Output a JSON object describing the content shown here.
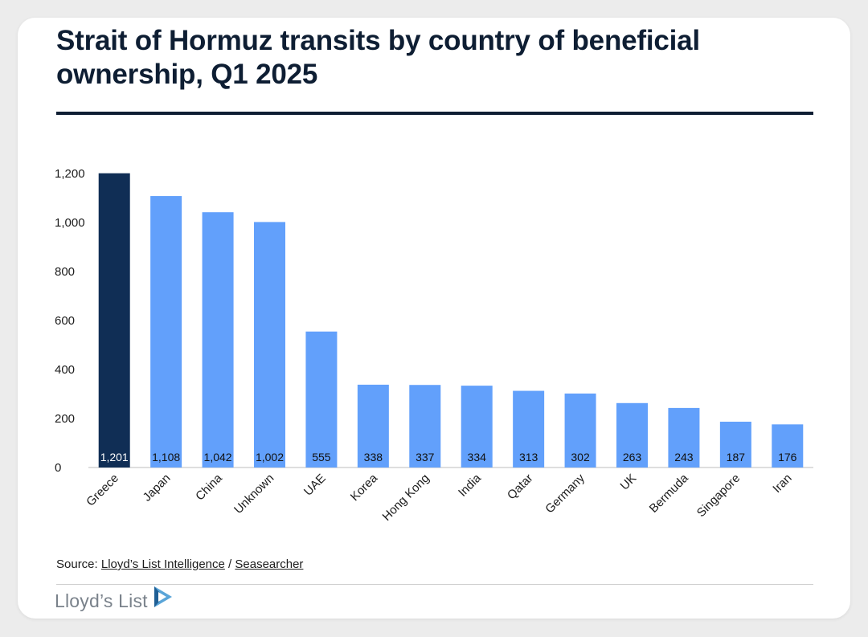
{
  "title": "Strait of Hormuz transits by country of beneficial ownership, Q1 2025",
  "source": {
    "prefix": "Source: ",
    "link1": "Lloyd’s List Intelligence",
    "separator": " / ",
    "link2": "Seasearcher"
  },
  "logo_text": "Lloyd’s List",
  "colors": {
    "highlight": "#102e55",
    "bar": "#62a0fb",
    "title": "#0e1e33"
  },
  "chart_data": {
    "type": "bar",
    "title": "Strait of Hormuz transits by country of beneficial ownership, Q1 2025",
    "xlabel": "",
    "ylabel": "",
    "ylim": [
      0,
      1200
    ],
    "yticks": [
      0,
      200,
      400,
      600,
      800,
      1000,
      1200
    ],
    "ytick_labels": [
      "0",
      "200",
      "400",
      "600",
      "800",
      "1,000",
      "1,200"
    ],
    "grid": false,
    "categories": [
      "Greece",
      "Japan",
      "China",
      "Unknown",
      "UAE",
      "Korea",
      "Hong Kong",
      "India",
      "Qatar",
      "Germany",
      "UK",
      "Bermuda",
      "Singapore",
      "Iran"
    ],
    "values": [
      1201,
      1108,
      1042,
      1002,
      555,
      338,
      337,
      334,
      313,
      302,
      263,
      243,
      187,
      176
    ],
    "data_labels": [
      "1,201",
      "1,108",
      "1,042",
      "1,002",
      "555",
      "338",
      "337",
      "334",
      "313",
      "302",
      "263",
      "243",
      "187",
      "176"
    ],
    "highlight_index": 0
  }
}
